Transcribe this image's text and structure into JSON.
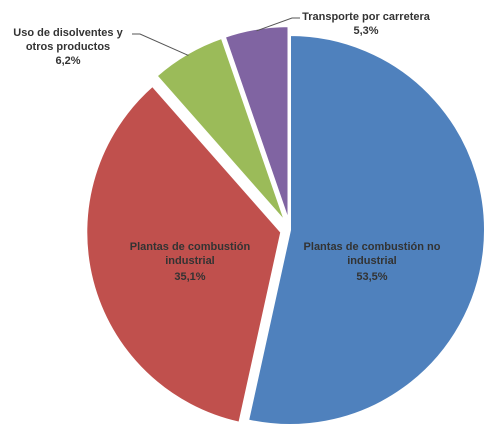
{
  "chart_data": {
    "type": "pie",
    "categories": [
      "Plantas de combustión no industrial",
      "Plantas de combustión industrial",
      "Uso de disolventes y otros productos",
      "Transporte por carretera"
    ],
    "values": [
      53.5,
      35.1,
      6.2,
      5.3
    ],
    "value_labels": [
      "53,5%",
      "35,1%",
      "6,2%",
      "5,3%"
    ],
    "colors": [
      "#4f81bd",
      "#c0504d",
      "#9bbb59",
      "#8064a2"
    ]
  }
}
